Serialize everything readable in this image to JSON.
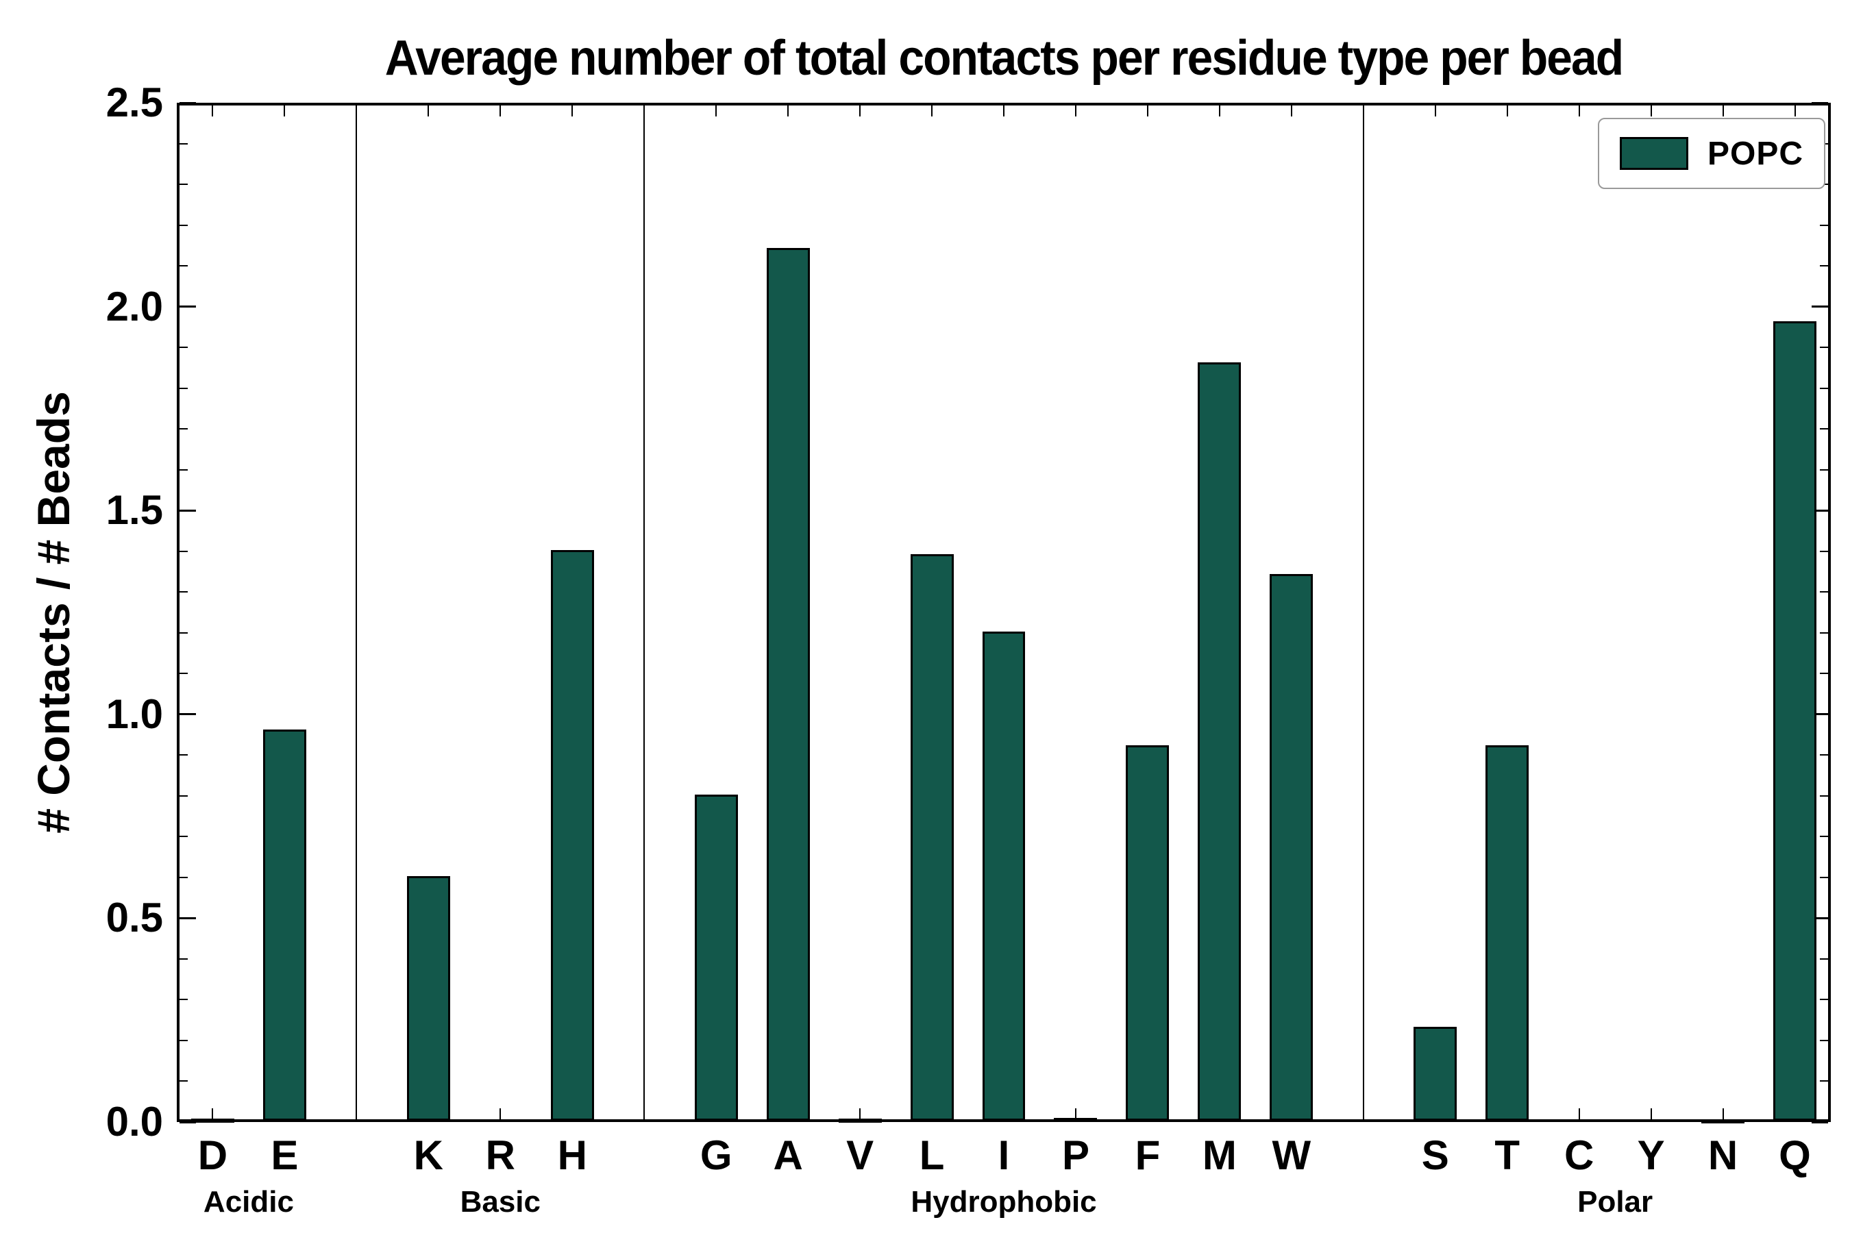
{
  "figure": {
    "background": "#ffffff"
  },
  "chart_data": {
    "type": "bar",
    "title": "Average number of total contacts per residue type per bead",
    "ylabel": "# Contacts / # Beads",
    "xlabel": "",
    "ylim": [
      0,
      2.5
    ],
    "ytick_step": 0.5,
    "minor_ytick_step": 0.1,
    "grid": false,
    "bar_color": "#13584b",
    "bar_edge_color": "#000000",
    "bar_width": 0.6,
    "group_gap": 1,
    "legend": {
      "position": "upper right",
      "entries": [
        {
          "label": "POPC",
          "color": "#13584b"
        }
      ]
    },
    "groups": [
      {
        "label": "Acidic",
        "residues": [
          "D",
          "E"
        ],
        "values": [
          0.005,
          0.96
        ]
      },
      {
        "label": "Basic",
        "residues": [
          "K",
          "R",
          "H"
        ],
        "values": [
          0.6,
          0.0,
          1.4
        ]
      },
      {
        "label": "Hydrophobic",
        "residues": [
          "G",
          "A",
          "V",
          "L",
          "I",
          "P",
          "F",
          "M",
          "W"
        ],
        "values": [
          0.8,
          2.14,
          0.005,
          1.39,
          1.2,
          0.007,
          0.92,
          1.86,
          1.34
        ]
      },
      {
        "label": "Polar",
        "residues": [
          "S",
          "T",
          "C",
          "Y",
          "N",
          "Q"
        ],
        "values": [
          0.23,
          0.92,
          0.0,
          0.0,
          0.004,
          1.96
        ]
      }
    ]
  }
}
